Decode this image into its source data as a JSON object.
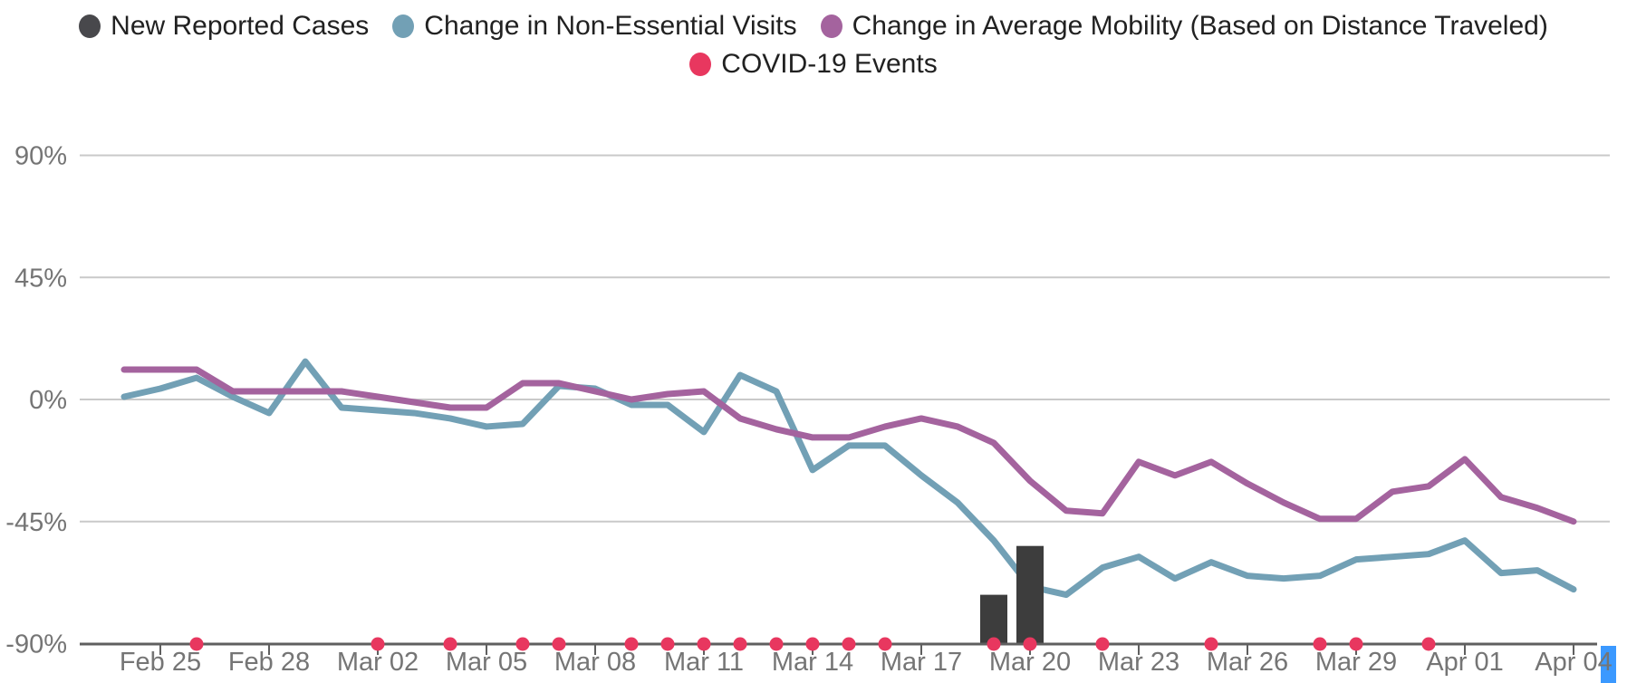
{
  "legend": {
    "rows": [
      {
        "items": [
          {
            "id": "new-reported-cases",
            "label": "New Reported Cases",
            "color": "#48484c"
          },
          {
            "id": "non-essential-visits",
            "label": "Change in Non-Essential Visits",
            "color": "#72a0b5"
          },
          {
            "id": "average-mobility",
            "label": "Change in Average Mobility (Based on Distance Traveled)",
            "color": "#a4639e"
          }
        ]
      },
      {
        "items": [
          {
            "id": "covid-events",
            "label": "COVID-19 Events",
            "color": "#e8375f"
          }
        ]
      }
    ]
  },
  "selection": {
    "label": "Apr 04",
    "selected_char": "4",
    "highlight_color": "#3b99ff"
  },
  "chart_data": {
    "type": "combo",
    "title": "",
    "x_unit": "date",
    "categories": [
      "Feb 24",
      "Feb 25",
      "Feb 26",
      "Feb 27",
      "Feb 28",
      "Feb 29",
      "Mar 01",
      "Mar 02",
      "Mar 03",
      "Mar 04",
      "Mar 05",
      "Mar 06",
      "Mar 07",
      "Mar 08",
      "Mar 09",
      "Mar 10",
      "Mar 11",
      "Mar 12",
      "Mar 13",
      "Mar 14",
      "Mar 15",
      "Mar 16",
      "Mar 17",
      "Mar 18",
      "Mar 19",
      "Mar 20",
      "Mar 21",
      "Mar 22",
      "Mar 23",
      "Mar 24",
      "Mar 25",
      "Mar 26",
      "Mar 27",
      "Mar 28",
      "Mar 29",
      "Mar 30",
      "Mar 31",
      "Apr 01",
      "Apr 02",
      "Apr 03",
      "Apr 04"
    ],
    "series": [
      {
        "name": "Change in Non-Essential Visits",
        "type": "line",
        "color": "#72a0b5",
        "values": [
          1,
          4,
          8,
          1,
          -5,
          14,
          -3,
          -4,
          -5,
          -7,
          -10,
          -9,
          5,
          4,
          -2,
          -2,
          -12,
          9,
          3,
          -26,
          -17,
          -17,
          -28,
          -38,
          -52,
          -69,
          -72,
          -62,
          -58,
          -66,
          -60,
          -65,
          -66,
          -65,
          -59,
          -58,
          -57,
          -52,
          -64,
          -63,
          -70
        ]
      },
      {
        "name": "Change in Average Mobility (Based on Distance Traveled)",
        "type": "line",
        "color": "#a4639e",
        "values": [
          11,
          11,
          11,
          3,
          3,
          3,
          3,
          1,
          -1,
          -3,
          -3,
          6,
          6,
          3,
          0,
          2,
          3,
          -7,
          -11,
          -14,
          -14,
          -10,
          -7,
          -10,
          -16,
          -30,
          -41,
          -42,
          -23,
          -28,
          -23,
          -31,
          -38,
          -44,
          -44,
          -34,
          -32,
          -22,
          -36,
          -40,
          -45
        ]
      },
      {
        "name": "New Reported Cases",
        "type": "bar",
        "color": "#3d3d3d",
        "bars": [
          {
            "category": "Mar 19",
            "top_value_pct": -72
          },
          {
            "category": "Mar 20",
            "top_value_pct": -54
          }
        ]
      },
      {
        "name": "COVID-19 Events",
        "type": "event-dots",
        "color": "#e8375f",
        "dates": [
          "Feb 26",
          "Mar 02",
          "Mar 04",
          "Mar 06",
          "Mar 07",
          "Mar 09",
          "Mar 10",
          "Mar 11",
          "Mar 12",
          "Mar 13",
          "Mar 14",
          "Mar 15",
          "Mar 16",
          "Mar 19",
          "Mar 20",
          "Mar 22",
          "Mar 25",
          "Mar 28",
          "Mar 29",
          "Mar 31"
        ]
      }
    ],
    "y_axis": {
      "tick_labels": [
        "90%",
        "45%",
        "0%",
        "-45%",
        "-90%"
      ],
      "tick_values": [
        90,
        45,
        0,
        -45,
        -90
      ],
      "min": -90,
      "max": 90,
      "label_color": "#757575"
    },
    "x_axis": {
      "tick_labels": [
        "Feb 25",
        "Feb 28",
        "Mar 02",
        "Mar 05",
        "Mar 08",
        "Mar 11",
        "Mar 14",
        "Mar 17",
        "Mar 20",
        "Mar 23",
        "Mar 26",
        "Mar 29",
        "Apr 01",
        "Apr 04"
      ],
      "tick_indices": [
        1,
        4,
        7,
        10,
        13,
        16,
        19,
        22,
        25,
        28,
        31,
        34,
        37,
        40
      ],
      "label_color": "#757575"
    },
    "grid": true,
    "gridline_color": "#c9c9c9",
    "axis_line_color": "#5f5f5f",
    "legend_position": "top-center"
  }
}
